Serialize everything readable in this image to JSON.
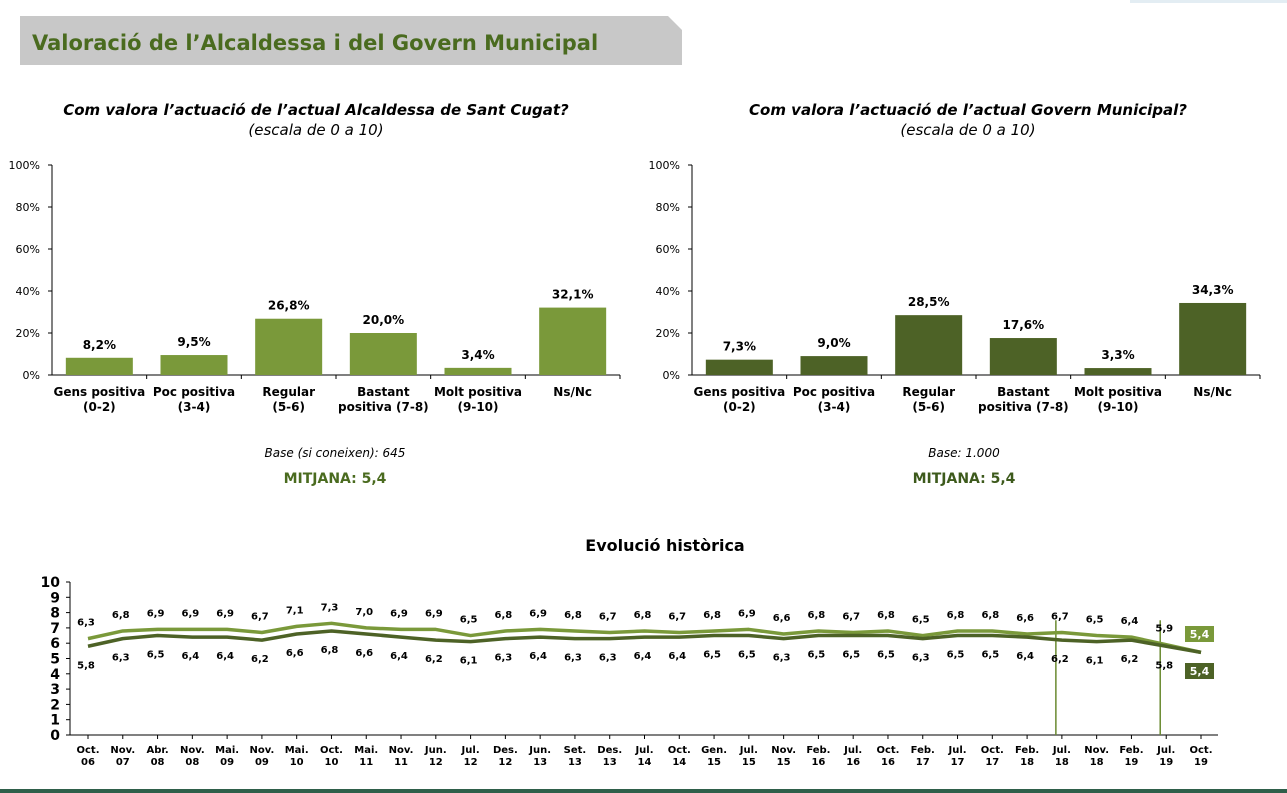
{
  "banner": {
    "title": "Valoració de l’Alcaldessa i del Govern Municipal"
  },
  "colors": {
    "light_green": "#7a993a",
    "dark_green": "#4d6226",
    "banner_bg": "#c8c8c8",
    "title_green": "#4a6b1f"
  },
  "left_panel": {
    "question": "Com valora l’actuació de l’actual Alcaldessa de Sant Cugat?",
    "scale": "(escala de 0 a 10)",
    "base": "Base (si coneixen): 645",
    "mitjana": "MITJANA: 5,4"
  },
  "right_panel": {
    "question": "Com valora l’actuació de l’actual Govern Municipal?",
    "scale": "(escala de 0 a 10)",
    "base": "Base: 1.000",
    "mitjana": "MITJANA: 5,4"
  },
  "history": {
    "title": "Evolució històrica"
  },
  "chart_data": [
    {
      "type": "bar",
      "categories": [
        [
          "Gens positiva",
          "(0-2)"
        ],
        [
          "Poc positiva",
          "(3-4)"
        ],
        [
          "Regular",
          "(5-6)"
        ],
        [
          "Bastant",
          "positiva (7-8)"
        ],
        [
          "Molt positiva",
          "(9-10)"
        ],
        [
          "Ns/Nc"
        ]
      ],
      "values": [
        8.2,
        9.5,
        26.8,
        20.0,
        3.4,
        32.1
      ],
      "value_labels": [
        "8,2%",
        "9,5%",
        "26,8%",
        "20,0%",
        "3,4%",
        "32,1%"
      ],
      "yticks": [
        "0%",
        "20%",
        "40%",
        "60%",
        "80%",
        "100%"
      ],
      "ylim": [
        0,
        100
      ],
      "color": "#7a993a"
    },
    {
      "type": "bar",
      "categories": [
        [
          "Gens positiva",
          "(0-2)"
        ],
        [
          "Poc positiva",
          "(3-4)"
        ],
        [
          "Regular",
          "(5-6)"
        ],
        [
          "Bastant",
          "positiva (7-8)"
        ],
        [
          "Molt positiva",
          "(9-10)"
        ],
        [
          "Ns/Nc"
        ]
      ],
      "values": [
        7.3,
        9.0,
        28.5,
        17.6,
        3.3,
        34.3
      ],
      "value_labels": [
        "7,3%",
        "9,0%",
        "28,5%",
        "17,6%",
        "3,3%",
        "34,3%"
      ],
      "yticks": [
        "0%",
        "20%",
        "40%",
        "60%",
        "80%",
        "100%"
      ],
      "ylim": [
        0,
        100
      ],
      "color": "#4d6226"
    },
    {
      "type": "line",
      "x": [
        [
          "Oct.",
          "06"
        ],
        [
          "Nov.",
          "07"
        ],
        [
          "Abr.",
          "08"
        ],
        [
          "Nov.",
          "08"
        ],
        [
          "Mai.",
          "09"
        ],
        [
          "Nov.",
          "09"
        ],
        [
          "Mai.",
          "10"
        ],
        [
          "Oct.",
          "10"
        ],
        [
          "Mai.",
          "11"
        ],
        [
          "Nov.",
          "11"
        ],
        [
          "Jun.",
          "12"
        ],
        [
          "Jul.",
          "12"
        ],
        [
          "Des.",
          "12"
        ],
        [
          "Jun.",
          "13"
        ],
        [
          "Set.",
          "13"
        ],
        [
          "Des.",
          "13"
        ],
        [
          "Jul.",
          "14"
        ],
        [
          "Oct.",
          "14"
        ],
        [
          "Gen.",
          "15"
        ],
        [
          "Jul.",
          "15"
        ],
        [
          "Nov.",
          "15"
        ],
        [
          "Feb.",
          "16"
        ],
        [
          "Jul.",
          "16"
        ],
        [
          "Oct.",
          "16"
        ],
        [
          "Feb.",
          "17"
        ],
        [
          "Jul.",
          "17"
        ],
        [
          "Oct.",
          "17"
        ],
        [
          "Feb.",
          "18"
        ],
        [
          "Jul.",
          "18"
        ],
        [
          "Nov.",
          "18"
        ],
        [
          "Feb.",
          "19"
        ],
        [
          "Jul.",
          "19"
        ],
        [
          "Oct.",
          "19"
        ]
      ],
      "series": [
        {
          "color": "#7a993a",
          "values": [
            6.3,
            6.8,
            6.9,
            6.9,
            6.9,
            6.7,
            7.1,
            7.3,
            7.0,
            6.9,
            6.9,
            6.5,
            6.8,
            6.9,
            6.8,
            6.7,
            6.8,
            6.7,
            6.8,
            6.9,
            6.6,
            6.8,
            6.7,
            6.8,
            6.5,
            6.8,
            6.8,
            6.6,
            6.7,
            6.5,
            6.4,
            5.9,
            5.4
          ],
          "labels": [
            "6,3",
            "6,8",
            "6,9",
            "6,9",
            "6,9",
            "6,7",
            "7,1",
            "7,3",
            "7,0",
            "6,9",
            "6,9",
            "6,5",
            "6,8",
            "6,9",
            "6,8",
            "6,7",
            "6,8",
            "6,7",
            "6,8",
            "6,9",
            "6,6",
            "6,8",
            "6,7",
            "6,8",
            "6,5",
            "6,8",
            "6,8",
            "6,6",
            "6,7",
            "6,5",
            "6,4",
            "5,9",
            "5,4"
          ]
        },
        {
          "color": "#4d6226",
          "values": [
            5.8,
            6.3,
            6.5,
            6.4,
            6.4,
            6.2,
            6.6,
            6.8,
            6.6,
            6.4,
            6.2,
            6.1,
            6.3,
            6.4,
            6.3,
            6.3,
            6.4,
            6.4,
            6.5,
            6.5,
            6.3,
            6.5,
            6.5,
            6.5,
            6.3,
            6.5,
            6.5,
            6.4,
            6.2,
            6.1,
            6.2,
            5.8,
            5.4
          ],
          "labels": [
            "5,8",
            "6,3",
            "6,5",
            "6,4",
            "6,4",
            "6,2",
            "6,6",
            "6,8",
            "6,6",
            "6,4",
            "6,2",
            "6,1",
            "6,3",
            "6,4",
            "6,3",
            "6,3",
            "6,4",
            "6,4",
            "6,5",
            "6,5",
            "6,3",
            "6,5",
            "6,5",
            "6,5",
            "6,3",
            "6,5",
            "6,5",
            "6,4",
            "6,2",
            "6,1",
            "6,2",
            "5,8",
            "5,4"
          ]
        }
      ],
      "yticks": [
        "0",
        "1",
        "2",
        "3",
        "4",
        "5",
        "6",
        "7",
        "8",
        "9",
        "10"
      ],
      "ylim": [
        0,
        10
      ],
      "final_boxes": [
        "5,4",
        "5,4"
      ],
      "vertical_markers_at": [
        "Jul. 18",
        "Jul. 19"
      ]
    }
  ]
}
